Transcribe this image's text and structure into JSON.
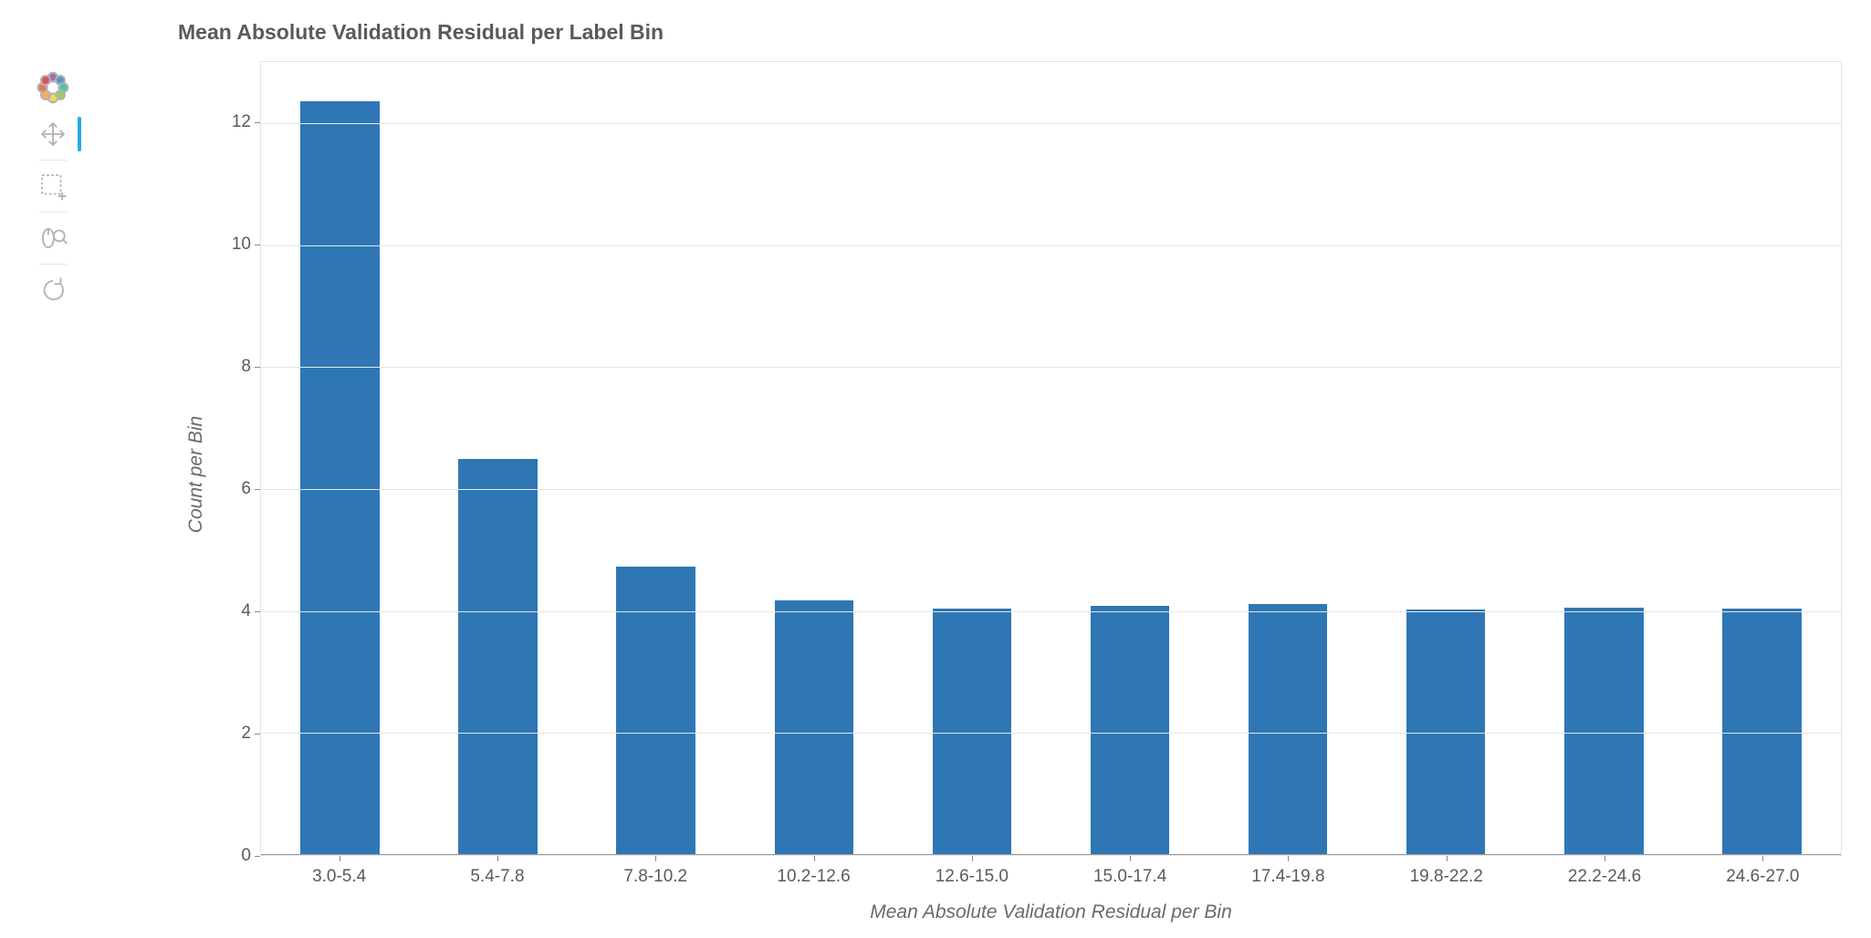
{
  "toolbar": {
    "logo_colors": [
      "#9d4fa1",
      "#3388c0",
      "#2fb6a6",
      "#8cc63e",
      "#f7ce46",
      "#f5a33a",
      "#e85e3a",
      "#d6343e"
    ],
    "tool_color": "#b3b3b3",
    "active_indicator_color": "#26aae1",
    "pan_active": true
  },
  "chart": {
    "type": "bar",
    "title": "Mean Absolute Validation Residual per Label Bin",
    "title_fontsize": 23,
    "title_fontweight": 700,
    "title_color": "#5a5a5a",
    "xlabel": "Mean Absolute Validation Residual per Bin",
    "ylabel": "Count per Bin",
    "axis_label_fontsize": 21,
    "axis_label_fontstyle": "italic",
    "axis_label_color": "#6a6a6a",
    "tick_fontsize": 19,
    "tick_color": "#5a5a5a",
    "background_color": "#ffffff",
    "grid_color": "#e5e5e5",
    "border_color": "#e5e5e5",
    "bar_color": "#2e77b4",
    "bar_width_ratio": 0.5,
    "categories": [
      "3.0-5.4",
      "5.4-7.8",
      "7.8-10.2",
      "10.2-12.6",
      "12.6-15.0",
      "15.0-17.4",
      "17.4-19.8",
      "19.8-22.2",
      "22.2-24.6",
      "24.6-27.0"
    ],
    "values": [
      12.35,
      6.5,
      4.73,
      4.18,
      4.04,
      4.08,
      4.12,
      4.03,
      4.06,
      4.04
    ],
    "ylim": [
      0,
      13
    ],
    "yticks": [
      0,
      2,
      4,
      6,
      8,
      10,
      12
    ]
  }
}
